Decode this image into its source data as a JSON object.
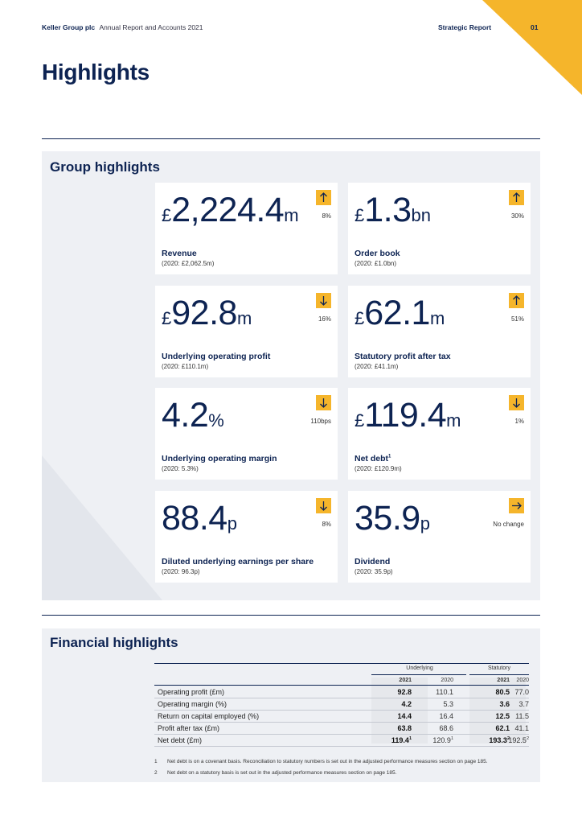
{
  "header": {
    "company": "Keller Group plc",
    "document": "Annual Report and Accounts 2021",
    "section": "Strategic Report",
    "page": "01"
  },
  "title": "Highlights",
  "group": {
    "title": "Group highlights",
    "cards": [
      {
        "prefix": "£",
        "number": "2,224.4",
        "suffix": "m",
        "direction": "up",
        "change": "8%",
        "label": "Revenue",
        "label_sup": "",
        "prior": "(2020: £2,062.5m)"
      },
      {
        "prefix": "£",
        "number": "1.3",
        "suffix": "bn",
        "direction": "up",
        "change": "30%",
        "label": "Order book",
        "label_sup": "",
        "prior": "(2020: £1.0bn)"
      },
      {
        "prefix": "£",
        "number": "92.8",
        "suffix": "m",
        "direction": "down",
        "change": "16%",
        "label": "Underlying operating profit",
        "label_sup": "",
        "prior": "(2020: £110.1m)"
      },
      {
        "prefix": "£",
        "number": "62.1",
        "suffix": "m",
        "direction": "up",
        "change": "51%",
        "label": "Statutory profit after tax",
        "label_sup": "",
        "prior": "(2020: £41.1m)"
      },
      {
        "prefix": "",
        "number": "4.2",
        "suffix": "%",
        "direction": "down",
        "change": "110bps",
        "label": "Underlying operating margin",
        "label_sup": "",
        "prior": "(2020: 5.3%)"
      },
      {
        "prefix": "£",
        "number": "119.4",
        "suffix": "m",
        "direction": "down",
        "change": "1%",
        "label": "Net debt",
        "label_sup": "1",
        "prior": "(2020: £120.9m)"
      },
      {
        "prefix": "",
        "number": "88.4",
        "suffix": "p",
        "direction": "down",
        "change": "8%",
        "label": "Diluted underlying earnings per share",
        "label_sup": "",
        "prior": "(2020: 96.3p)"
      },
      {
        "prefix": "",
        "number": "35.9",
        "suffix": "p",
        "direction": "right",
        "change": "No change",
        "label": "Dividend",
        "label_sup": "",
        "prior": "(2020: 35.9p)"
      }
    ]
  },
  "financial": {
    "title": "Financial highlights",
    "group_headers": [
      "Underlying",
      "Statutory"
    ],
    "years": [
      "2021",
      "2020",
      "2021",
      "2020"
    ],
    "rows": [
      {
        "label": "Operating profit (£m)",
        "values": [
          "92.8",
          "110.1",
          "80.5",
          "77.0"
        ],
        "sups": [
          "",
          "",
          "",
          ""
        ]
      },
      {
        "label": "Operating margin (%)",
        "values": [
          "4.2",
          "5.3",
          "3.6",
          "3.7"
        ],
        "sups": [
          "",
          "",
          "",
          ""
        ]
      },
      {
        "label": "Return on capital employed (%)",
        "values": [
          "14.4",
          "16.4",
          "12.5",
          "11.5"
        ],
        "sups": [
          "",
          "",
          "",
          ""
        ]
      },
      {
        "label": "Profit after tax (£m)",
        "values": [
          "63.8",
          "68.6",
          "62.1",
          "41.1"
        ],
        "sups": [
          "",
          "",
          "",
          ""
        ]
      },
      {
        "label": "Net debt (£m)",
        "values": [
          "119.4",
          "120.9",
          "193.3",
          "192.5"
        ],
        "sups": [
          "1",
          "1",
          "2",
          "2"
        ]
      }
    ],
    "footnotes": [
      {
        "n": "1",
        "text": "Net debt is on a covenant basis. Reconciliation to statutory numbers is set out in the adjusted performance measures section on page 185."
      },
      {
        "n": "2",
        "text": "Net debt on a statutory basis is set out in the adjusted performance measures section on page 185."
      }
    ]
  }
}
